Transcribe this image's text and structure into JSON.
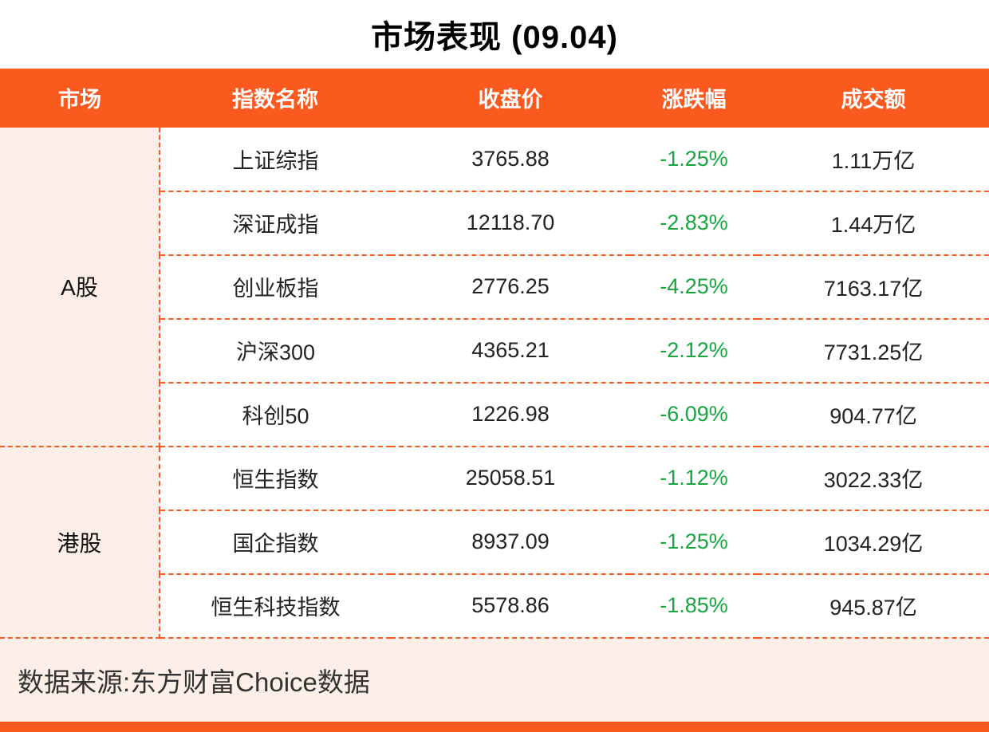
{
  "title": "市场表现 (09.04)",
  "colors": {
    "accent": "#fb5a1f",
    "decline_green": "#16a53f",
    "panel_bg": "#fdeee8"
  },
  "footer": {
    "source": "数据来源:东方财富Choice数据"
  },
  "chart_data": {
    "type": "table",
    "title": "市场表现 (09.04)",
    "columns": [
      "市场",
      "指数名称",
      "收盘价",
      "涨跌幅",
      "成交额"
    ],
    "groups": [
      {
        "market": "A股",
        "rows": [
          {
            "name": "上证综指",
            "close": "3765.88",
            "change": "-1.25%",
            "turnover": "1.11万亿"
          },
          {
            "name": "深证成指",
            "close": "12118.70",
            "change": "-2.83%",
            "turnover": "1.44万亿"
          },
          {
            "name": "创业板指",
            "close": "2776.25",
            "change": "-4.25%",
            "turnover": "7163.17亿"
          },
          {
            "name": "沪深300",
            "close": "4365.21",
            "change": "-2.12%",
            "turnover": "7731.25亿"
          },
          {
            "name": "科创50",
            "close": "1226.98",
            "change": "-6.09%",
            "turnover": "904.77亿"
          }
        ]
      },
      {
        "market": "港股",
        "rows": [
          {
            "name": "恒生指数",
            "close": "25058.51",
            "change": "-1.12%",
            "turnover": "3022.33亿"
          },
          {
            "name": "国企指数",
            "close": "8937.09",
            "change": "-1.25%",
            "turnover": "1034.29亿"
          },
          {
            "name": "恒生科技指数",
            "close": "5578.86",
            "change": "-1.85%",
            "turnover": "945.87亿"
          }
        ]
      }
    ],
    "source": "数据来源:东方财富Choice数据"
  }
}
